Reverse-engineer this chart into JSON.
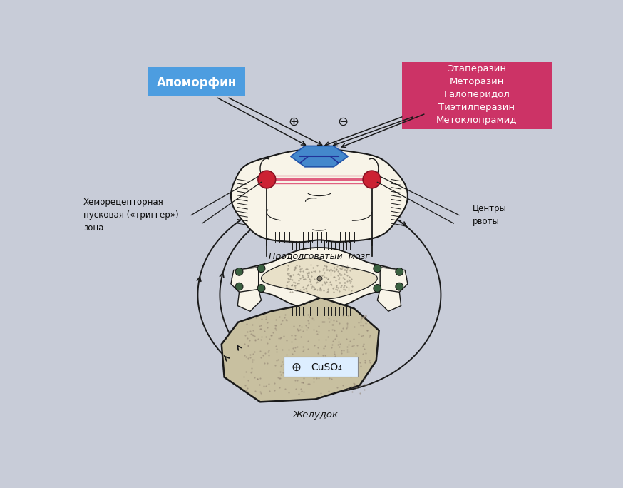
{
  "background_color": "#c8ccd8",
  "apomorphin_label": "Апоморфин",
  "apomorphin_box_color": "#4d9de0",
  "antiemetic_label": "Этаперазин\nМеторазин\nГалоперидол\nТиэтилперазин\nМетоклопрамид",
  "antiemetic_box_color": "#cc3366",
  "chemoreceptor_label": "Хеморецепторная\nпусковая («триггер»)\nзона",
  "vomiting_center_label": "Центры\nрвоты",
  "medulla_label": "Продолговатый  мозг",
  "stomach_label": "Желудок",
  "cuso4_label": "CuSO₄",
  "plus_symbol": "⊕",
  "minus_symbol": "⊖",
  "green_node_color": "#3a6040",
  "arrow_color": "#1a1a1a",
  "loop_color": "#1a1a1a",
  "brain_fill": "#f8f4e8",
  "brain_edge": "#1a1a1a",
  "stomach_fill": "#c8c0a0",
  "trigger_blue": "#4488cc",
  "red_circle": "#cc2233",
  "pink_line": "#e06080"
}
